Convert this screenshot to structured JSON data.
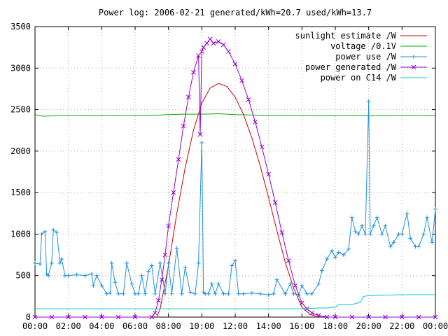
{
  "chart_data": {
    "type": "line",
    "title": "Power log: 2006-02-21 generated/kWh=20.7 used/kWh=13.7",
    "xlabel": "",
    "ylabel": "",
    "xlim": [
      0,
      24
    ],
    "ylim": [
      0,
      3500
    ],
    "x_ticks": [
      "00:00",
      "02:00",
      "04:00",
      "06:00",
      "08:00",
      "10:00",
      "12:00",
      "14:00",
      "16:00",
      "18:00",
      "20:00",
      "22:00",
      "00:00"
    ],
    "y_ticks": [
      "0",
      "500",
      "1000",
      "1500",
      "2000",
      "2500",
      "3000",
      "3500"
    ],
    "grid": true,
    "legend_position": "top-right",
    "series": [
      {
        "name": "sunlight estimate /W",
        "color": "#cc0000",
        "marker": "none",
        "x": [
          7.3,
          7.5,
          8.0,
          8.5,
          9.0,
          9.5,
          10.0,
          10.5,
          11.0,
          11.5,
          12.0,
          12.5,
          13.0,
          13.5,
          14.0,
          14.5,
          15.0,
          15.5,
          16.0,
          16.5,
          17.0,
          17.2
        ],
        "values": [
          0,
          100,
          620,
          1250,
          1800,
          2250,
          2580,
          2760,
          2815,
          2780,
          2650,
          2440,
          2160,
          1820,
          1440,
          1040,
          660,
          350,
          120,
          30,
          5,
          0
        ]
      },
      {
        "name": "voltage /0.1V",
        "color": "#00aa00",
        "marker": "none",
        "x": [
          0,
          0.5,
          1,
          2,
          3,
          4,
          5,
          6,
          7,
          8,
          9,
          10,
          11,
          12,
          13,
          14,
          15,
          16,
          17,
          18,
          19,
          20,
          21,
          22,
          23,
          24
        ],
        "values": [
          2440,
          2420,
          2425,
          2430,
          2425,
          2430,
          2425,
          2430,
          2430,
          2440,
          2445,
          2445,
          2450,
          2440,
          2435,
          2430,
          2430,
          2430,
          2425,
          2425,
          2430,
          2425,
          2425,
          2430,
          2430,
          2425
        ]
      },
      {
        "name": "power use /W",
        "color": "#1e90e0",
        "marker": "plus",
        "x": [
          0,
          0.3,
          0.4,
          0.6,
          0.7,
          0.8,
          1.0,
          1.1,
          1.3,
          1.5,
          1.6,
          1.8,
          2.0,
          2.5,
          3.0,
          3.4,
          3.5,
          3.7,
          4.0,
          4.3,
          4.5,
          4.6,
          4.8,
          5.0,
          5.3,
          5.5,
          5.8,
          6.0,
          6.2,
          6.4,
          6.6,
          6.8,
          7.0,
          7.2,
          7.5,
          7.8,
          8.0,
          8.2,
          8.5,
          8.8,
          9.0,
          9.3,
          9.6,
          9.8,
          10.0,
          10.1,
          10.2,
          10.4,
          10.6,
          10.8,
          11.0,
          11.3,
          11.6,
          11.8,
          12.0,
          12.2,
          12.5,
          13.0,
          13.5,
          14.0,
          14.3,
          14.5,
          15.0,
          15.3,
          15.5,
          15.8,
          16.0,
          16.3,
          16.6,
          17.0,
          17.2,
          17.5,
          17.8,
          18.0,
          18.2,
          18.5,
          18.8,
          19.0,
          19.2,
          19.4,
          19.6,
          19.8,
          20.0,
          20.1,
          20.3,
          20.5,
          20.8,
          21.0,
          21.3,
          21.5,
          21.8,
          22.0,
          22.3,
          22.5,
          22.8,
          23.0,
          23.3,
          23.5,
          23.8,
          24.0
        ],
        "values": [
          650,
          640,
          1000,
          1030,
          520,
          500,
          650,
          1050,
          1020,
          650,
          700,
          500,
          500,
          510,
          500,
          520,
          380,
          500,
          380,
          280,
          290,
          650,
          420,
          280,
          280,
          650,
          400,
          280,
          280,
          500,
          280,
          550,
          620,
          280,
          650,
          280,
          650,
          280,
          830,
          280,
          600,
          300,
          280,
          650,
          2100,
          300,
          280,
          280,
          400,
          280,
          400,
          280,
          280,
          620,
          680,
          280,
          280,
          290,
          280,
          270,
          280,
          450,
          280,
          400,
          280,
          270,
          380,
          280,
          280,
          400,
          560,
          700,
          800,
          720,
          780,
          750,
          820,
          1200,
          1030,
          1000,
          1100,
          1000,
          2600,
          1000,
          1100,
          1200,
          1000,
          1100,
          850,
          900,
          1000,
          1000,
          1250,
          950,
          850,
          850,
          1000,
          1200,
          900,
          1300
        ]
      },
      {
        "name": "power generated /W",
        "color": "#9400d3",
        "marker": "x",
        "x": [
          0,
          1,
          2,
          3,
          4,
          5,
          6,
          7.0,
          7.2,
          7.4,
          7.6,
          7.8,
          8.0,
          8.3,
          8.6,
          8.9,
          9.2,
          9.5,
          9.8,
          9.9,
          10.0,
          10.1,
          10.3,
          10.5,
          10.7,
          11.0,
          11.3,
          11.6,
          12.0,
          12.4,
          12.8,
          13.2,
          13.6,
          14.0,
          14.4,
          14.8,
          15.2,
          15.6,
          16.0,
          16.3,
          16.6,
          17.0,
          17.5,
          18.0,
          19.0,
          20.0,
          21.0,
          22.0,
          23.0,
          24.0
        ],
        "values": [
          0,
          0,
          0,
          0,
          0,
          0,
          0,
          0,
          50,
          200,
          450,
          750,
          1100,
          1500,
          1900,
          2300,
          2650,
          2950,
          3150,
          2200,
          3200,
          3250,
          3300,
          3350,
          3300,
          3320,
          3280,
          3200,
          3050,
          2850,
          2620,
          2350,
          2050,
          1720,
          1380,
          1020,
          680,
          380,
          170,
          100,
          50,
          20,
          0,
          0,
          0,
          0,
          0,
          0,
          0,
          0
        ]
      },
      {
        "name": "power on C14 /W",
        "color": "#00cccc",
        "marker": "none",
        "x": [
          0,
          2,
          4,
          6,
          8,
          10,
          12,
          14,
          16,
          17,
          17.5,
          18.0,
          18.2,
          19.0,
          19.5,
          19.7,
          20.0,
          20.2,
          22.0,
          24.0
        ],
        "values": [
          100,
          100,
          100,
          100,
          100,
          100,
          100,
          100,
          100,
          110,
          110,
          120,
          150,
          150,
          180,
          250,
          260,
          260,
          270,
          270
        ]
      }
    ]
  }
}
